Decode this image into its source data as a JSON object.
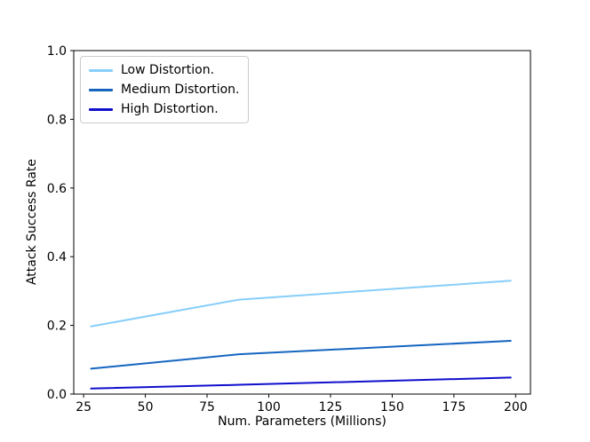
{
  "chart_data": {
    "type": "line",
    "title": "",
    "xlabel": "Num. Parameters (Millions)",
    "ylabel": "Attack Success Rate",
    "xlim": [
      21,
      206
    ],
    "ylim": [
      0.0,
      1.0
    ],
    "x_ticks": [
      25,
      50,
      75,
      100,
      125,
      150,
      175,
      200
    ],
    "y_ticks": [
      0.0,
      0.2,
      0.4,
      0.6,
      0.8,
      1.0
    ],
    "grid": false,
    "legend_position": "upper left",
    "x": [
      28,
      88,
      198
    ],
    "series": [
      {
        "name": "Low Distortion.",
        "color": "#87CEFA",
        "values": [
          0.197,
          0.275,
          0.33
        ]
      },
      {
        "name": "Medium Distortion.",
        "color": "#1565C0",
        "values": [
          0.074,
          0.116,
          0.155
        ]
      },
      {
        "name": "High Distortion.",
        "color": "#0F0FCD",
        "values": [
          0.016,
          0.027,
          0.048
        ]
      }
    ],
    "axis_color": "#000000",
    "background_color": "#ffffff"
  }
}
